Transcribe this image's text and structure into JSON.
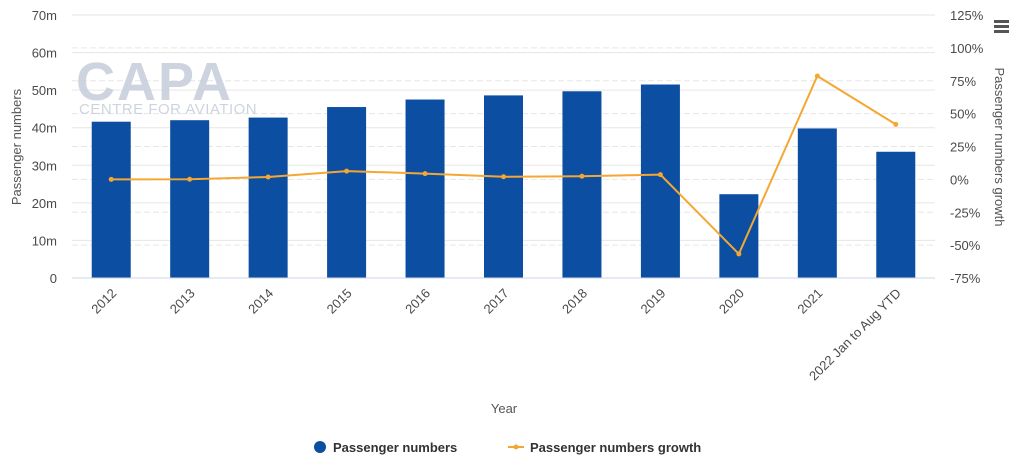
{
  "chart_data": {
    "type": "bar+line",
    "categories": [
      "2012",
      "2013",
      "2014",
      "2015",
      "2016",
      "2017",
      "2018",
      "2019",
      "2020",
      "2021",
      "2022 Jan to Aug YTD"
    ],
    "series": [
      {
        "name": "Passenger numbers",
        "type": "bar",
        "axis": "left",
        "values": [
          41.6,
          42.0,
          42.7,
          45.5,
          47.5,
          48.6,
          49.7,
          51.5,
          22.3,
          39.8,
          33.6
        ]
      },
      {
        "name": "Passenger numbers growth",
        "type": "line",
        "axis": "right",
        "values": [
          0.0,
          0.1,
          1.8,
          6.3,
          4.4,
          2.0,
          2.4,
          3.6,
          -56.7,
          78.6,
          41.8
        ]
      }
    ],
    "xlabel": "Year",
    "ylabel_left": "Passenger numbers",
    "ylabel_right": "Passenger numbers growth",
    "ylim_left": [
      0,
      70
    ],
    "ylim_right": [
      -75,
      125
    ],
    "yticks_left": [
      "0",
      "10m",
      "20m",
      "30m",
      "40m",
      "50m",
      "60m",
      "70m"
    ],
    "yticks_right": [
      "-75%",
      "-50%",
      "-25%",
      "0%",
      "25%",
      "50%",
      "75%",
      "100%",
      "125%"
    ],
    "grid": true,
    "legend_position": "bottom",
    "colors": {
      "bar": "#0b4ea2",
      "line": "#f4a833"
    }
  },
  "watermark": {
    "logo": "CAPA",
    "subtitle": "CENTRE FOR AVIATION"
  },
  "menu_icon": "hamburger-menu-icon"
}
